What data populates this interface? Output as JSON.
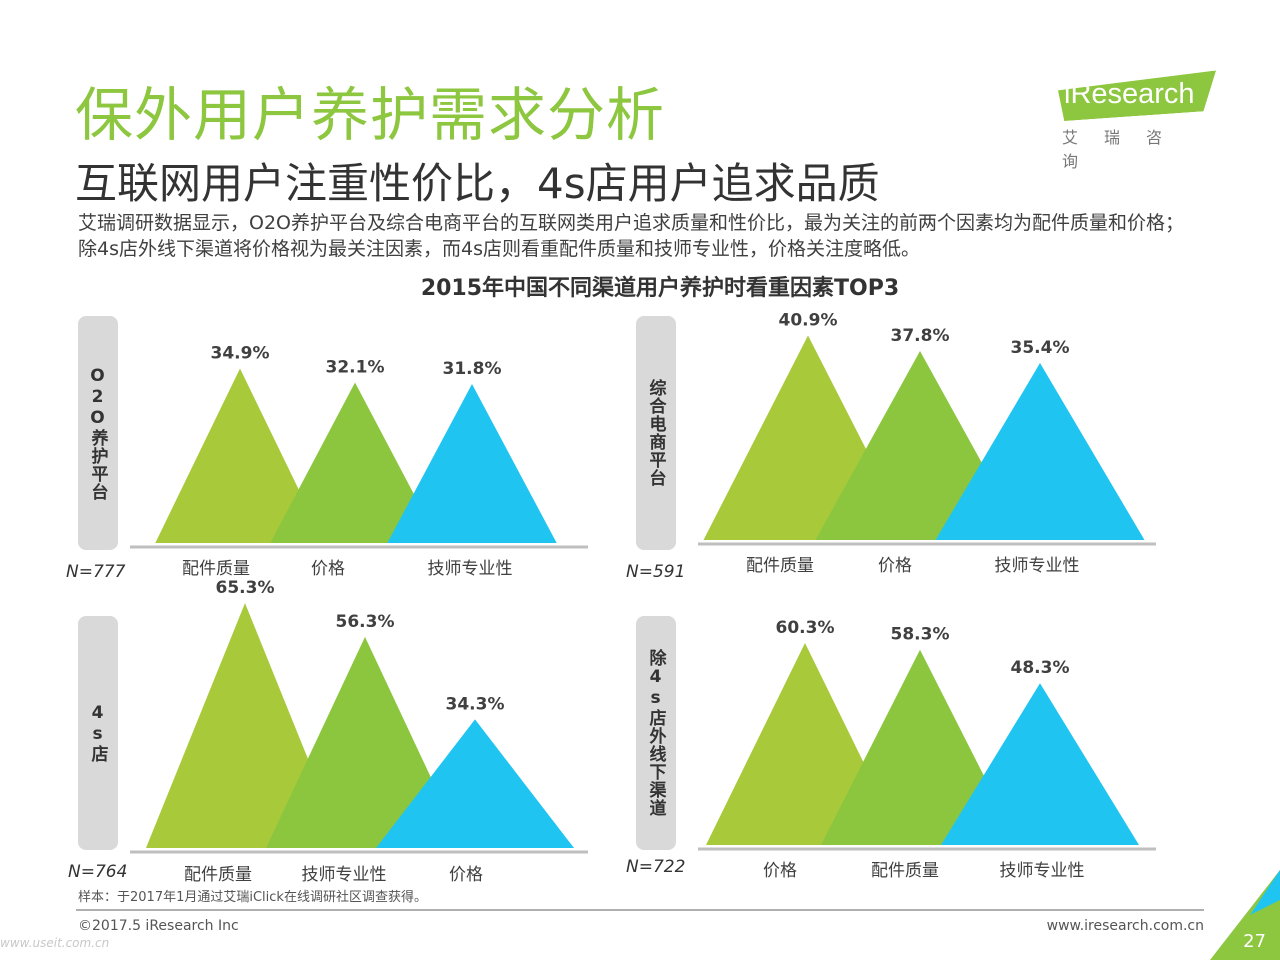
{
  "title": "保外用户养护需求分析",
  "subtitle": "互联网用户注重性价比，4s店用户追求品质",
  "description": "艾瑞调研数据显示，O2O养护平台及综合电商平台的互联网类用户追求质量和性价比，最为关注的前两个因素均为配件质量和价格；除4s店外线下渠道将价格视为最关注因素，而4s店则看重配件质量和技师专业性，价格关注度略低。",
  "logo": {
    "brand": "iResearch",
    "cn": "艾瑞咨询"
  },
  "colors": {
    "series": [
      "#a8c93a",
      "#8cc63f",
      "#20c4f0"
    ],
    "accent": "#8dc63f",
    "label_bg": "#d9d9d9"
  },
  "chart_data": {
    "type": "triangle",
    "title": "2015年中国不同渠道用户养护时看重因素TOP3",
    "unit": "%",
    "panels": [
      {
        "channel": "O2O养护平台",
        "n": "N=777",
        "categories": [
          "配件质量",
          "价格",
          "技师专业性"
        ],
        "values": [
          34.9,
          32.1,
          31.8
        ],
        "labels": [
          "34.9%",
          "32.1%",
          "31.8%"
        ]
      },
      {
        "channel": "综合电商平台",
        "n": "N=591",
        "categories": [
          "配件质量",
          "价格",
          "技师专业性"
        ],
        "values": [
          40.9,
          37.8,
          35.4
        ],
        "labels": [
          "40.9%",
          "37.8%",
          "35.4%"
        ]
      },
      {
        "channel": "4s店",
        "n": "N=764",
        "categories": [
          "配件质量",
          "技师专业性",
          "价格"
        ],
        "values": [
          65.3,
          56.3,
          34.3
        ],
        "labels": [
          "65.3%",
          "56.3%",
          "34.3%"
        ]
      },
      {
        "channel": "除4s店外线下渠道",
        "n": "N=722",
        "categories": [
          "价格",
          "配件质量",
          "技师专业性"
        ],
        "values": [
          60.3,
          58.3,
          48.3
        ],
        "labels": [
          "60.3%",
          "58.3%",
          "48.3%"
        ]
      }
    ]
  },
  "note": "样本：于2017年1月通过艾瑞iClick在线调研社区调查获得。",
  "footer": {
    "copyright": "©2017.5 iResearch Inc",
    "url": "www.iresearch.com.cn",
    "watermark": "www.useit.com.cn",
    "page": "27"
  }
}
